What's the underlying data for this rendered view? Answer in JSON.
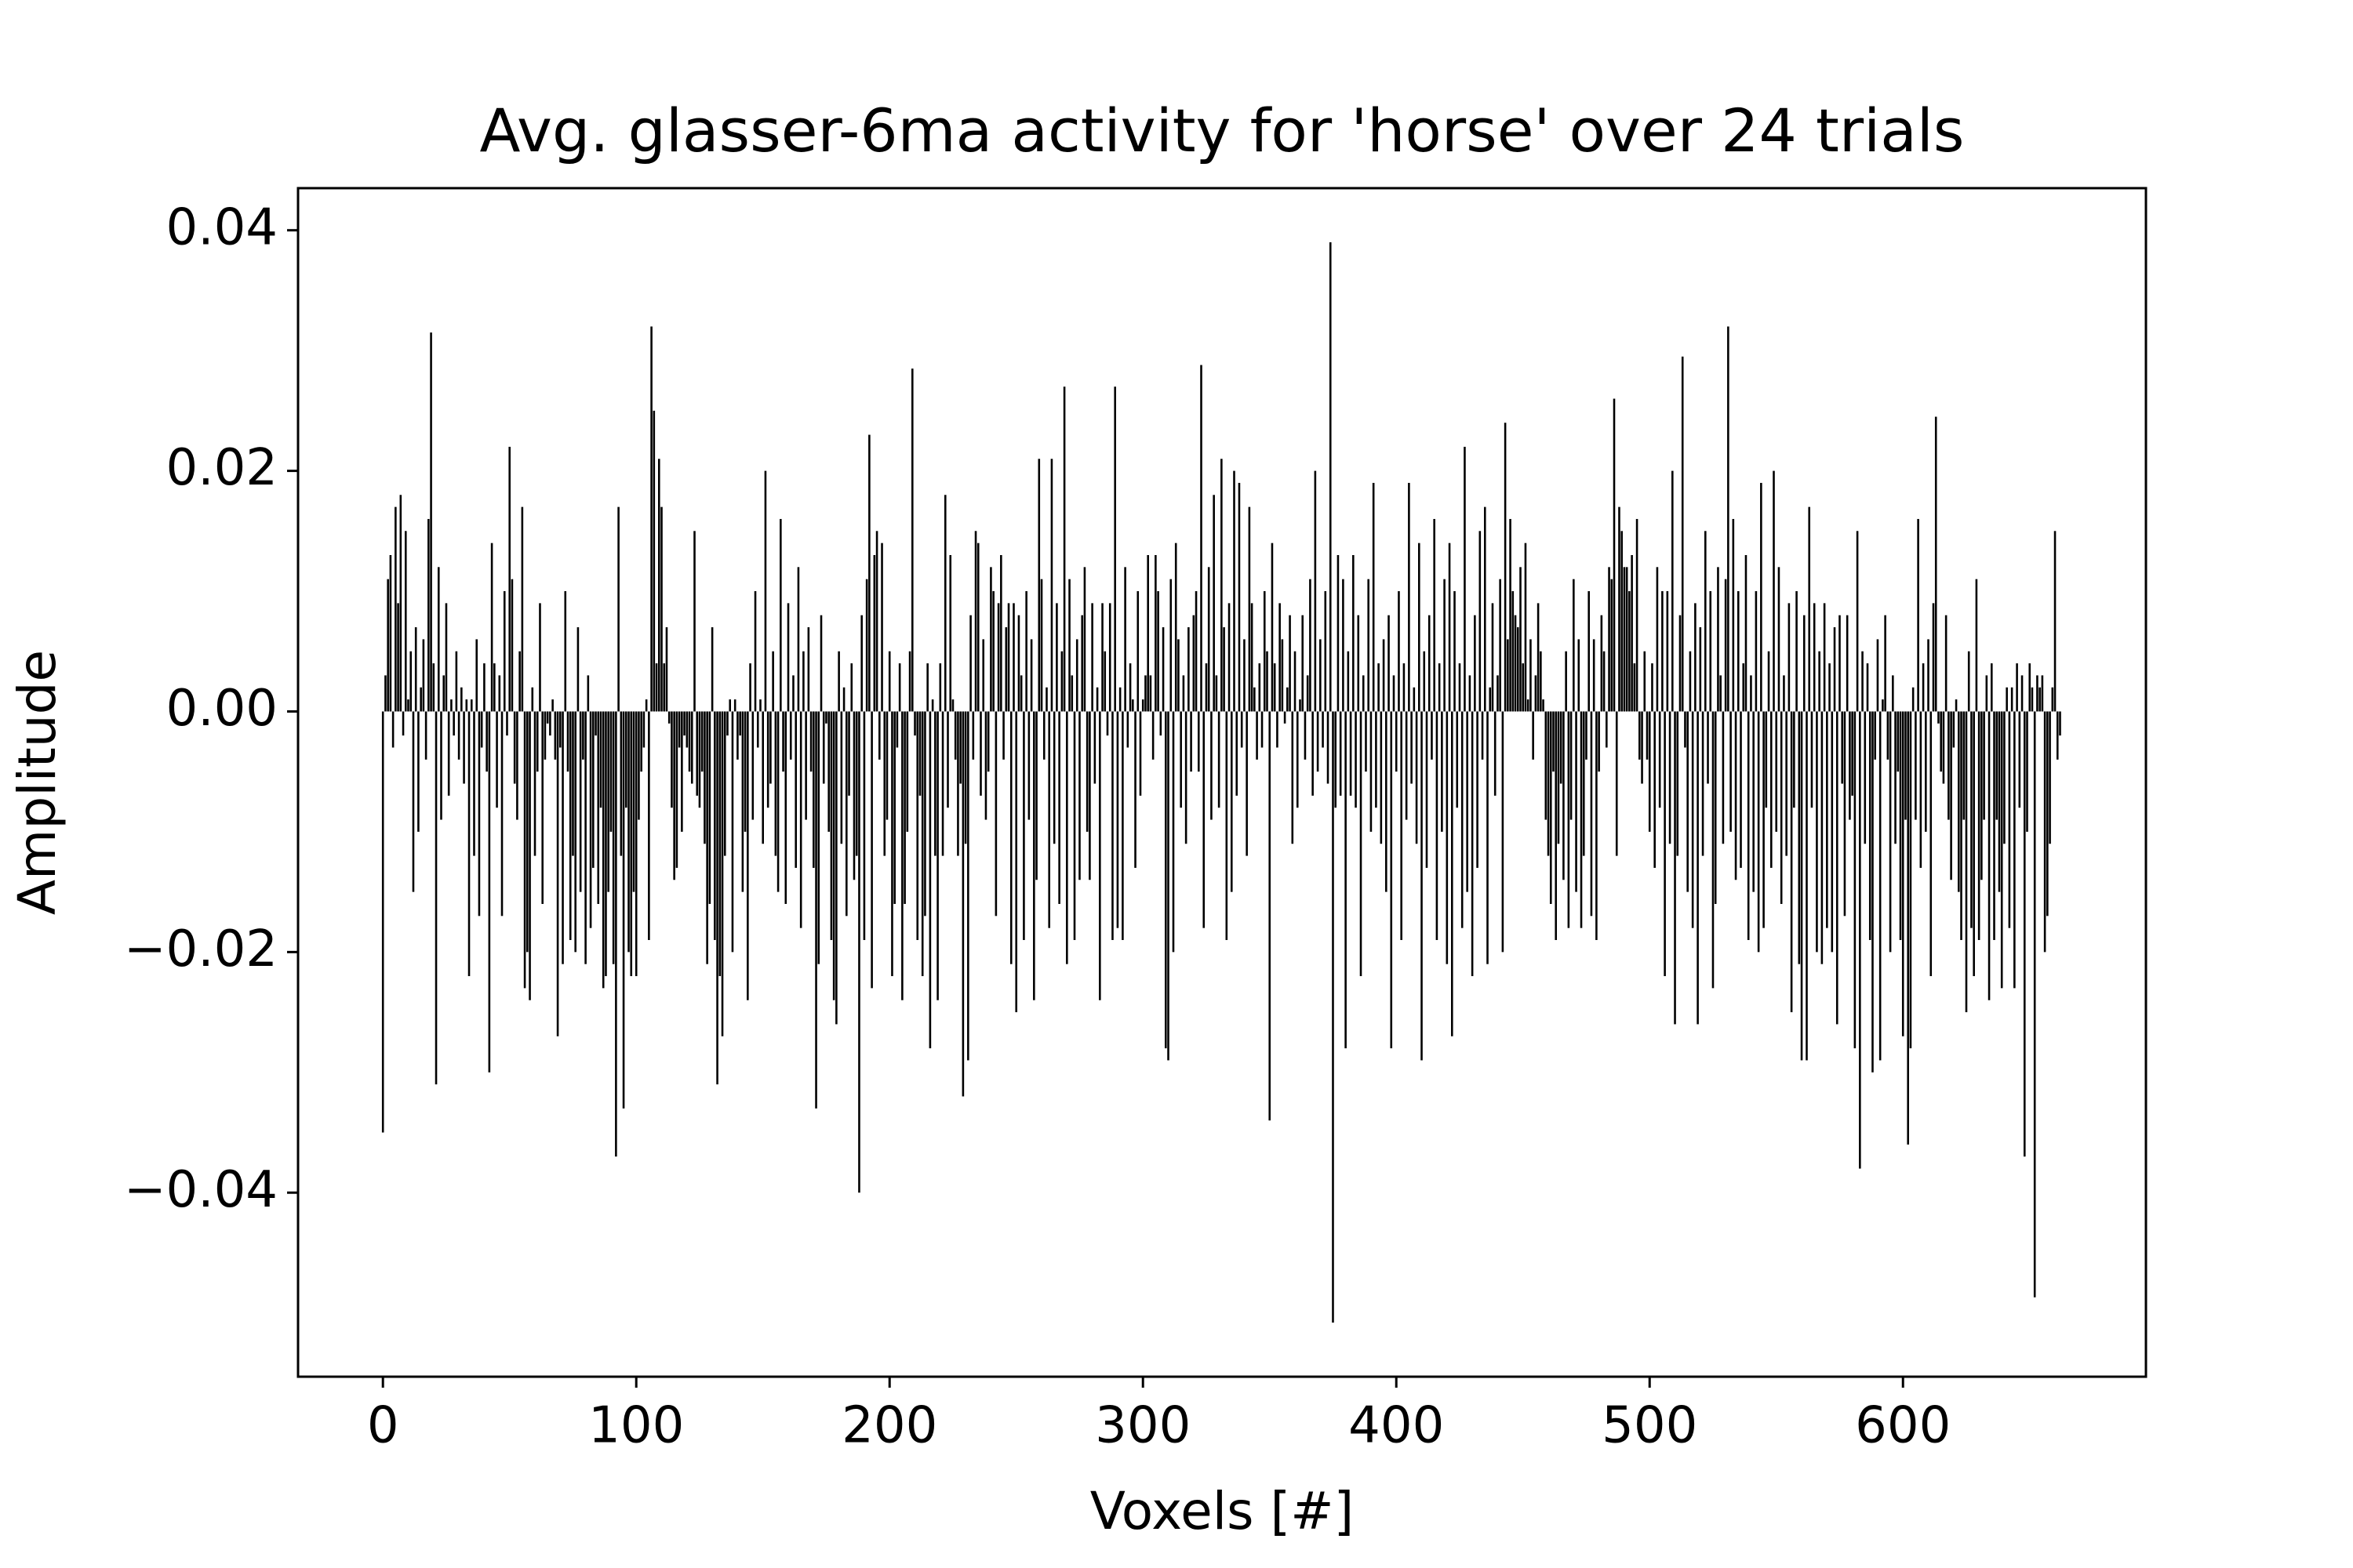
{
  "chart_data": {
    "type": "bar",
    "title": "Avg. glasser-6ma activity for 'horse' over 24 trials",
    "xlabel": "Voxels [#]",
    "ylabel": "Amplitude",
    "color": "#000000",
    "xlim": [
      -33.5,
      695.9
    ],
    "ylim": [
      -0.0553,
      0.0435
    ],
    "xticks": [
      0,
      100,
      200,
      300,
      400,
      500,
      600
    ],
    "yticks": [
      {
        "value": -0.04,
        "label": "−0.04"
      },
      {
        "value": -0.02,
        "label": "−0.02"
      },
      {
        "value": 0,
        "label": "0.00"
      },
      {
        "value": 0.02,
        "label": "0.02"
      },
      {
        "value": 0.04,
        "label": "0.04"
      }
    ],
    "x": [
      0,
      1,
      2,
      3,
      4,
      5,
      6,
      7,
      8,
      9,
      10,
      11,
      12,
      13,
      14,
      15,
      16,
      17,
      18,
      19,
      20,
      21,
      22,
      23,
      24,
      25,
      26,
      27,
      28,
      29,
      30,
      31,
      32,
      33,
      34,
      35,
      36,
      37,
      38,
      39,
      40,
      41,
      42,
      43,
      44,
      45,
      46,
      47,
      48,
      49,
      50,
      51,
      52,
      53,
      54,
      55,
      56,
      57,
      58,
      59,
      60,
      61,
      62,
      63,
      64,
      65,
      66,
      67,
      68,
      69,
      70,
      71,
      72,
      73,
      74,
      75,
      76,
      77,
      78,
      79,
      80,
      81,
      82,
      83,
      84,
      85,
      86,
      87,
      88,
      89,
      90,
      91,
      92,
      93,
      94,
      95,
      96,
      97,
      98,
      99,
      100,
      101,
      102,
      103,
      104,
      105,
      106,
      107,
      108,
      109,
      110,
      111,
      112,
      113,
      114,
      115,
      116,
      117,
      118,
      119,
      120,
      121,
      122,
      123,
      124,
      125,
      126,
      127,
      128,
      129,
      130,
      131,
      132,
      133,
      134,
      135,
      136,
      137,
      138,
      139,
      140,
      141,
      142,
      143,
      144,
      145,
      146,
      147,
      148,
      149,
      150,
      151,
      152,
      153,
      154,
      155,
      156,
      157,
      158,
      159,
      160,
      161,
      162,
      163,
      164,
      165,
      166,
      167,
      168,
      169,
      170,
      171,
      172,
      173,
      174,
      175,
      176,
      177,
      178,
      179,
      180,
      181,
      182,
      183,
      184,
      185,
      186,
      187,
      188,
      189,
      190,
      191,
      192,
      193,
      194,
      195,
      196,
      197,
      198,
      199,
      200,
      201,
      202,
      203,
      204,
      205,
      206,
      207,
      208,
      209,
      210,
      211,
      212,
      213,
      214,
      215,
      216,
      217,
      218,
      219,
      220,
      221,
      222,
      223,
      224,
      225,
      226,
      227,
      228,
      229,
      230,
      231,
      232,
      233,
      234,
      235,
      236,
      237,
      238,
      239,
      240,
      241,
      242,
      243,
      244,
      245,
      246,
      247,
      248,
      249,
      250,
      251,
      252,
      253,
      254,
      255,
      256,
      257,
      258,
      259,
      260,
      261,
      262,
      263,
      264,
      265,
      266,
      267,
      268,
      269,
      270,
      271,
      272,
      273,
      274,
      275,
      276,
      277,
      278,
      279,
      280,
      281,
      282,
      283,
      284,
      285,
      286,
      287,
      288,
      289,
      290,
      291,
      292,
      293,
      294,
      295,
      296,
      297,
      298,
      299,
      300,
      301,
      302,
      303,
      304,
      305,
      306,
      307,
      308,
      309,
      310,
      311,
      312,
      313,
      314,
      315,
      316,
      317,
      318,
      319,
      320,
      321,
      322,
      323,
      324,
      325,
      326,
      327,
      328,
      329,
      330,
      331,
      332,
      333,
      334,
      335,
      336,
      337,
      338,
      339,
      340,
      341,
      342,
      343,
      344,
      345,
      346,
      347,
      348,
      349,
      350,
      351,
      352,
      353,
      354,
      355,
      356,
      357,
      358,
      359,
      360,
      361,
      362,
      363,
      364,
      365,
      366,
      367,
      368,
      369,
      370,
      371,
      372,
      373,
      374,
      375,
      376,
      377,
      378,
      379,
      380,
      381,
      382,
      383,
      384,
      385,
      386,
      387,
      388,
      389,
      390,
      391,
      392,
      393,
      394,
      395,
      396,
      397,
      398,
      399,
      400,
      401,
      402,
      403,
      404,
      405,
      406,
      407,
      408,
      409,
      410,
      411,
      412,
      413,
      414,
      415,
      416,
      417,
      418,
      419,
      420,
      421,
      422,
      423,
      424,
      425,
      426,
      427,
      428,
      429,
      430,
      431,
      432,
      433,
      434,
      435,
      436,
      437,
      438,
      439,
      440,
      441,
      442,
      443,
      444,
      445,
      446,
      447,
      448,
      449,
      450,
      451,
      452,
      453,
      454,
      455,
      456,
      457,
      458,
      459,
      460,
      461,
      462,
      463,
      464,
      465,
      466,
      467,
      468,
      469,
      470,
      471,
      472,
      473,
      474,
      475,
      476,
      477,
      478,
      479,
      480,
      481,
      482,
      483,
      484,
      485,
      486,
      487,
      488,
      489,
      490,
      491,
      492,
      493,
      494,
      495,
      496,
      497,
      498,
      499,
      500,
      501,
      502,
      503,
      504,
      505,
      506,
      507,
      508,
      509,
      510,
      511,
      512,
      513,
      514,
      515,
      516,
      517,
      518,
      519,
      520,
      521,
      522,
      523,
      524,
      525,
      526,
      527,
      528,
      529,
      530,
      531,
      532,
      533,
      534,
      535,
      536,
      537,
      538,
      539,
      540,
      541,
      542,
      543,
      544,
      545,
      546,
      547,
      548,
      549,
      550,
      551,
      552,
      553,
      554,
      555,
      556,
      557,
      558,
      559,
      560,
      561,
      562,
      563,
      564,
      565,
      566,
      567,
      568,
      569,
      570,
      571,
      572,
      573,
      574,
      575,
      576,
      577,
      578,
      579,
      580,
      581,
      582,
      583,
      584,
      585,
      586,
      587,
      588,
      589,
      590,
      591,
      592,
      593,
      594,
      595,
      596,
      597,
      598,
      599,
      600,
      601,
      602,
      603,
      604,
      605,
      606,
      607,
      608,
      609,
      610,
      611,
      612,
      613,
      614,
      615,
      616,
      617,
      618,
      619,
      620,
      621,
      622,
      623,
      624,
      625,
      626,
      627,
      628,
      629,
      630,
      631,
      632,
      633,
      634,
      635,
      636,
      637,
      638,
      639,
      640,
      641,
      642,
      643,
      644,
      645,
      646,
      647,
      648,
      649,
      650,
      651,
      652,
      653,
      654,
      655,
      656,
      657,
      658,
      659,
      660,
      661,
      662
    ],
    "values": [
      -0.035,
      0.003,
      0.011,
      0.013,
      -0.003,
      0.017,
      0.009,
      0.018,
      -0.002,
      0.015,
      0.001,
      0.005,
      -0.015,
      0.007,
      -0.01,
      0.002,
      0.006,
      -0.004,
      0.016,
      0.0315,
      0.004,
      -0.031,
      0.012,
      -0.009,
      0.003,
      0.009,
      -0.007,
      0.001,
      -0.002,
      0.005,
      -0.004,
      0.002,
      -0.006,
      0.001,
      -0.022,
      0.001,
      -0.012,
      0.006,
      -0.017,
      -0.003,
      0.004,
      -0.005,
      -0.03,
      0.014,
      0.004,
      -0.008,
      0.003,
      -0.017,
      0.01,
      -0.002,
      0.022,
      0.011,
      -0.006,
      -0.009,
      0.005,
      0.017,
      -0.023,
      -0.02,
      -0.024,
      0.002,
      -0.012,
      -0.005,
      0.009,
      -0.016,
      -0.004,
      -0.001,
      -0.002,
      0.001,
      -0.004,
      -0.027,
      -0.003,
      -0.021,
      0.01,
      -0.005,
      -0.019,
      -0.012,
      -0.02,
      0.007,
      -0.015,
      -0.004,
      -0.021,
      0.003,
      -0.018,
      -0.013,
      -0.002,
      -0.016,
      -0.008,
      -0.023,
      -0.022,
      -0.015,
      -0.01,
      -0.021,
      -0.037,
      0.017,
      -0.012,
      -0.033,
      -0.008,
      -0.02,
      -0.022,
      -0.015,
      -0.022,
      -0.009,
      -0.005,
      -0.003,
      0.001,
      -0.019,
      0.032,
      0.025,
      0.004,
      0.021,
      0.017,
      0.004,
      0.007,
      -0.001,
      -0.008,
      -0.014,
      -0.013,
      -0.003,
      -0.01,
      -0.002,
      -0.003,
      -0.005,
      -0.006,
      0.015,
      -0.007,
      -0.008,
      -0.005,
      -0.011,
      -0.021,
      -0.016,
      0.007,
      -0.019,
      -0.031,
      -0.022,
      -0.027,
      -0.012,
      -0.002,
      0.001,
      -0.02,
      0.001,
      -0.004,
      -0.002,
      -0.015,
      -0.01,
      -0.024,
      0.004,
      -0.009,
      0.01,
      -0.003,
      0.001,
      -0.011,
      0.02,
      -0.008,
      -0.006,
      0.005,
      -0.012,
      -0.015,
      0.016,
      -0.005,
      -0.016,
      0.009,
      -0.004,
      0.003,
      -0.013,
      0.012,
      -0.018,
      0.005,
      -0.009,
      0.007,
      -0.005,
      -0.013,
      -0.033,
      -0.021,
      0.008,
      -0.006,
      -0.001,
      -0.01,
      -0.019,
      -0.024,
      -0.026,
      0.005,
      -0.011,
      0.002,
      -0.017,
      -0.007,
      0.004,
      -0.014,
      -0.012,
      -0.04,
      0.008,
      -0.019,
      0.011,
      0.023,
      -0.023,
      0.013,
      0.015,
      -0.004,
      0.014,
      -0.012,
      -0.009,
      0.005,
      -0.022,
      -0.016,
      -0.003,
      0.004,
      -0.024,
      -0.016,
      -0.01,
      0.005,
      0.0285,
      -0.002,
      -0.019,
      -0.007,
      -0.022,
      -0.017,
      0.004,
      -0.028,
      0.001,
      -0.012,
      -0.024,
      0.004,
      -0.012,
      0.018,
      -0.008,
      0.013,
      0.001,
      -0.004,
      -0.012,
      -0.006,
      -0.032,
      -0.011,
      -0.029,
      0.008,
      -0.004,
      0.015,
      0.014,
      -0.007,
      0.006,
      -0.009,
      -0.005,
      0.012,
      0.01,
      -0.017,
      0.009,
      0.013,
      -0.004,
      0.007,
      0.009,
      -0.021,
      0.009,
      -0.025,
      0.008,
      0.003,
      -0.019,
      0.01,
      -0.009,
      0.006,
      -0.024,
      -0.014,
      0.021,
      0.011,
      -0.004,
      0.002,
      -0.018,
      0.021,
      -0.011,
      0.009,
      -0.016,
      0.005,
      0.027,
      -0.021,
      0.011,
      0.003,
      -0.019,
      0.006,
      -0.014,
      0.008,
      0.012,
      -0.01,
      -0.014,
      0.009,
      -0.006,
      0.002,
      -0.024,
      0.009,
      0.005,
      -0.002,
      0.009,
      -0.019,
      0.027,
      -0.018,
      0.002,
      -0.019,
      0.012,
      -0.003,
      0.004,
      0.001,
      -0.013,
      0.01,
      -0.007,
      0.001,
      0.003,
      0.013,
      0.003,
      -0.004,
      0.013,
      0.01,
      -0.002,
      0.007,
      -0.028,
      -0.029,
      0.011,
      -0.02,
      0.014,
      0.006,
      -0.008,
      0.003,
      -0.011,
      0.007,
      -0.005,
      0.008,
      0.01,
      -0.005,
      0.0288,
      -0.018,
      0.004,
      0.012,
      -0.009,
      0.018,
      0.003,
      -0.008,
      0.021,
      0.007,
      -0.019,
      0.009,
      -0.015,
      0.02,
      -0.007,
      0.019,
      -0.003,
      0.006,
      -0.012,
      0.017,
      0.009,
      0.002,
      -0.004,
      0.004,
      -0.003,
      0.01,
      0.005,
      -0.034,
      0.014,
      0.004,
      -0.003,
      0.009,
      0.006,
      -0.001,
      0.002,
      0.008,
      -0.011,
      0.005,
      -0.008,
      0.001,
      0.008,
      -0.004,
      0.003,
      0.011,
      -0.007,
      0.02,
      -0.005,
      0.006,
      -0.003,
      0.01,
      -0.006,
      0.039,
      -0.0508,
      -0.008,
      0.013,
      -0.007,
      0.011,
      -0.028,
      0.005,
      -0.007,
      0.013,
      -0.008,
      0.008,
      -0.022,
      0.003,
      -0.005,
      0.011,
      -0.01,
      0.019,
      -0.008,
      0.004,
      -0.011,
      0.006,
      -0.015,
      0.008,
      -0.028,
      0.003,
      -0.005,
      0.01,
      -0.019,
      0.004,
      -0.009,
      0.019,
      -0.006,
      0.002,
      -0.011,
      0.014,
      -0.029,
      0.005,
      -0.013,
      0.008,
      -0.004,
      0.016,
      -0.019,
      0.004,
      -0.01,
      0.011,
      -0.021,
      0.014,
      -0.027,
      0.01,
      -0.008,
      0.004,
      -0.018,
      0.022,
      -0.015,
      0.003,
      -0.022,
      0.008,
      -0.013,
      0.015,
      -0.004,
      0.017,
      -0.021,
      0.002,
      0.009,
      -0.007,
      0.003,
      0.011,
      -0.02,
      0.024,
      0.006,
      0.016,
      0.01,
      0.008,
      0.007,
      0.012,
      0.004,
      0.014,
      0.001,
      0.006,
      -0.004,
      0.003,
      0.009,
      0.005,
      0.001,
      -0.009,
      -0.012,
      -0.016,
      -0.005,
      -0.019,
      -0.011,
      -0.006,
      -0.014,
      0.005,
      -0.018,
      -0.009,
      0.011,
      -0.015,
      0.006,
      -0.018,
      -0.012,
      -0.004,
      0.01,
      -0.017,
      0.006,
      -0.019,
      -0.005,
      0.008,
      0.005,
      -0.003,
      0.012,
      0.011,
      0.026,
      -0.012,
      0.017,
      0.015,
      0.012,
      0.012,
      0.01,
      0.013,
      0.004,
      0.016,
      -0.004,
      -0.006,
      0.005,
      -0.004,
      -0.01,
      0.004,
      -0.013,
      0.012,
      -0.008,
      0.01,
      -0.022,
      0.01,
      -0.011,
      0.02,
      -0.026,
      -0.012,
      0.008,
      0.0295,
      -0.003,
      -0.015,
      0.005,
      -0.018,
      0.009,
      -0.026,
      0.007,
      -0.012,
      0.015,
      -0.006,
      0.01,
      -0.023,
      -0.016,
      0.012,
      0.003,
      -0.011,
      0.011,
      0.032,
      -0.01,
      0.016,
      -0.014,
      0.01,
      -0.013,
      0.004,
      0.013,
      -0.019,
      0.003,
      -0.015,
      0.01,
      -0.02,
      0.019,
      -0.018,
      -0.008,
      0.005,
      -0.013,
      0.02,
      -0.01,
      0.012,
      -0.016,
      0.003,
      -0.012,
      0.009,
      -0.025,
      -0.008,
      0.01,
      -0.021,
      -0.029,
      0.008,
      -0.029,
      0.017,
      -0.008,
      0.009,
      -0.02,
      0.005,
      -0.021,
      0.009,
      -0.018,
      0.004,
      -0.02,
      0.007,
      -0.026,
      0.008,
      -0.006,
      -0.017,
      0.008,
      -0.009,
      -0.007,
      -0.028,
      0.015,
      -0.038,
      0.005,
      -0.011,
      0.004,
      -0.019,
      -0.03,
      -0.004,
      0.006,
      -0.029,
      0.001,
      0.008,
      -0.004,
      -0.02,
      0.003,
      -0.011,
      -0.005,
      -0.019,
      -0.027,
      -0.009,
      -0.036,
      -0.028,
      0.002,
      -0.009,
      0.016,
      -0.013,
      0.004,
      -0.01,
      0.006,
      -0.022,
      0.009,
      0.0245,
      -0.001,
      -0.005,
      -0.006,
      0.008,
      -0.009,
      -0.014,
      -0.003,
      0.001,
      -0.015,
      -0.019,
      -0.009,
      -0.025,
      0.005,
      -0.018,
      -0.022,
      0.011,
      -0.019,
      -0.014,
      -0.009,
      0.003,
      -0.024,
      0.004,
      -0.019,
      -0.009,
      -0.015,
      -0.023,
      -0.011,
      0.002,
      -0.018,
      0.002,
      -0.023,
      0.004,
      -0.008,
      0.003,
      -0.037,
      -0.01,
      0.004,
      0.002,
      -0.0487,
      0.003,
      0.002,
      0.003,
      -0.02,
      -0.017,
      -0.011,
      0.002,
      0.015,
      -0.004,
      -0.002
    ]
  }
}
